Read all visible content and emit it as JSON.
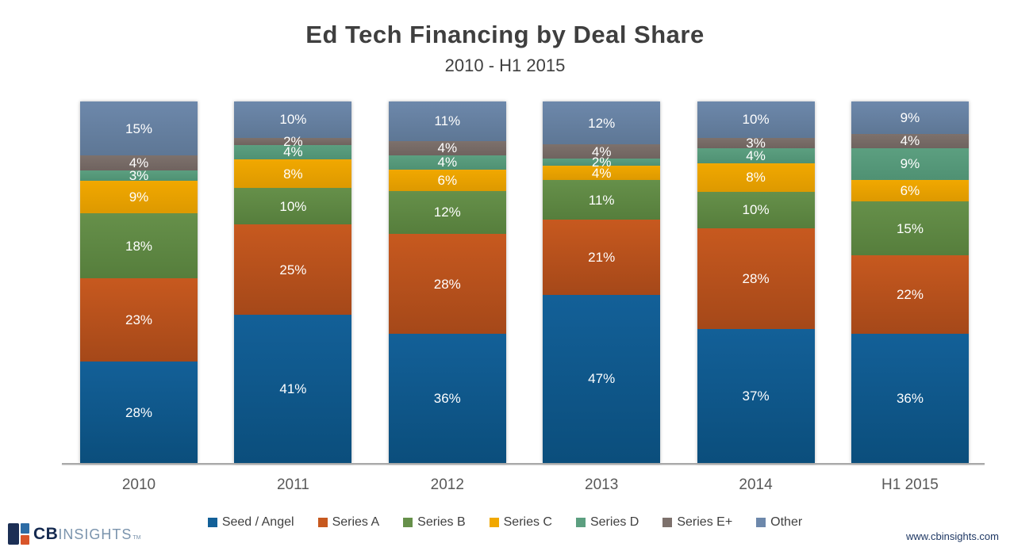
{
  "header": {
    "title": "Ed Tech Financing by Deal Share",
    "subtitle": "2010 - H1 2015"
  },
  "chart_data": {
    "type": "bar",
    "stacked": true,
    "orientation": "vertical",
    "title": "Ed Tech Financing by Deal Share",
    "subtitle": "2010 - H1 2015",
    "categories": [
      "2010",
      "2011",
      "2012",
      "2013",
      "2014",
      "H1 2015"
    ],
    "series": [
      {
        "name": "Seed / Angel",
        "color_top": "#136098",
        "color_bottom": "#0b4e7c",
        "values": [
          28,
          41,
          36,
          47,
          37,
          36
        ]
      },
      {
        "name": "Series A",
        "color_top": "#c7591f",
        "color_bottom": "#a54819",
        "values": [
          23,
          25,
          28,
          21,
          28,
          22
        ]
      },
      {
        "name": "Series B",
        "color_top": "#66904a",
        "color_bottom": "#567e3c",
        "values": [
          18,
          10,
          12,
          11,
          10,
          15
        ]
      },
      {
        "name": "Series C",
        "color_top": "#f1a800",
        "color_bottom": "#dd9900",
        "values": [
          9,
          8,
          6,
          4,
          8,
          6
        ]
      },
      {
        "name": "Series D",
        "color_top": "#5c9f80",
        "color_bottom": "#4f9173",
        "values": [
          3,
          4,
          4,
          2,
          4,
          9
        ]
      },
      {
        "name": "Series E+",
        "color_top": "#7d716c",
        "color_bottom": "#6f635f",
        "values": [
          4,
          2,
          4,
          4,
          3,
          4
        ]
      },
      {
        "name": "Other",
        "color_top": "#6d88ab",
        "color_bottom": "#5e7795",
        "values": [
          15,
          10,
          11,
          12,
          10,
          9
        ]
      }
    ],
    "value_suffix": "%",
    "label_color": "#ffffff",
    "ylim": [
      0,
      100
    ],
    "grid": false,
    "legend_position": "bottom"
  },
  "footer": {
    "logo": {
      "bold": "CB",
      "light": "INSIGHTS",
      "tm": "TM"
    },
    "website": "www.cbinsights.com"
  }
}
